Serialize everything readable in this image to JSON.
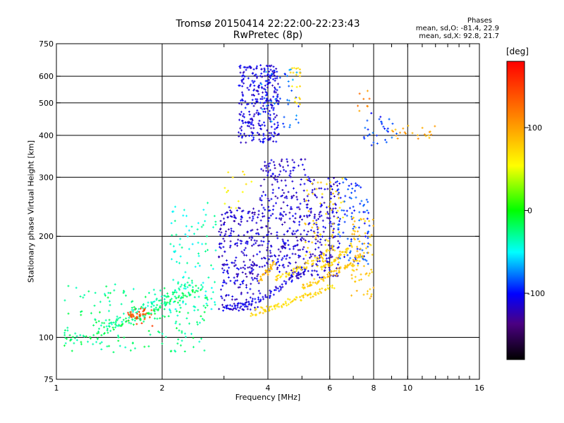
{
  "chart_data": {
    "type": "scatter",
    "title": "Tromsø 20150414 22:22:00-22:23:43",
    "subtitle": "RwPretec (8p)",
    "xlabel": "Frequency [MHz]",
    "ylabel": "Stationary phase Virtual Height [km]",
    "x_scale": "log",
    "y_scale": "log",
    "xlim": [
      1,
      16
    ],
    "ylim": [
      75,
      750
    ],
    "x_ticks": [
      1,
      2,
      4,
      6,
      8,
      10,
      16
    ],
    "x_tick_labels": [
      "1",
      "2",
      "4",
      "6",
      "8",
      "10",
      "16"
    ],
    "y_ticks": [
      75,
      100,
      200,
      300,
      400,
      500,
      600,
      750
    ],
    "y_tick_labels": [
      "75",
      "100",
      "200",
      "300",
      "400",
      "500",
      "600",
      "750"
    ],
    "grid": true,
    "phases": {
      "heading": "Phases",
      "o_line": "mean, sd,O: -81.4, 22.9",
      "x_line": "mean, sd,X:  92.8, 21.7"
    },
    "colorbar": {
      "label": "[deg]",
      "range": [
        -180,
        180
      ],
      "ticks": [
        100,
        0,
        -100
      ],
      "tick_labels": [
        "100",
        "0",
        "-100"
      ]
    },
    "traces": [
      {
        "x": [
          1.05,
          1.3,
          1.5,
          1.7,
          1.9,
          2.1,
          2.35,
          2.6
        ],
        "y": [
          98,
          102,
          108,
          113,
          120,
          128,
          134,
          140
        ],
        "phase": -20
      },
      {
        "x": [
          1.35,
          1.55,
          1.75,
          1.95,
          2.2,
          2.45
        ],
        "y": [
          108,
          115,
          122,
          128,
          138,
          148
        ],
        "phase": -30
      },
      {
        "x": [
          1.6,
          1.7,
          1.8
        ],
        "y": [
          118,
          115,
          120
        ],
        "phase": 140
      },
      {
        "x": [
          3.05,
          3.3,
          3.6,
          3.95,
          4.3,
          4.7,
          5.2
        ],
        "y": [
          122,
          124,
          126,
          132,
          140,
          150,
          160
        ],
        "phase": -110
      },
      {
        "x": [
          3.6,
          3.9,
          4.2,
          4.6,
          5.1,
          5.6,
          6.2
        ],
        "y": [
          118,
          121,
          124,
          128,
          132,
          137,
          142
        ],
        "phase": 70
      },
      {
        "x": [
          5.0,
          5.4,
          5.9,
          6.4,
          6.9,
          7.4
        ],
        "y": [
          140,
          146,
          152,
          158,
          165,
          174
        ],
        "phase": 80
      },
      {
        "x": [
          5.7,
          6.1,
          6.5,
          7.0
        ],
        "y": [
          160,
          168,
          178,
          190
        ],
        "phase": 75
      },
      {
        "x": [
          4.2,
          4.6,
          5.0,
          5.6,
          6.2
        ],
        "y": [
          150,
          155,
          162,
          172,
          185
        ],
        "phase": 70
      },
      {
        "x": [
          3.8,
          4.0,
          4.2
        ],
        "y": [
          150,
          158,
          168
        ],
        "phase": 90
      }
    ],
    "clusters": [
      {
        "x": [
          1.05,
          2.7
        ],
        "y": [
          90,
          145
        ],
        "phase": -25,
        "count": 190
      },
      {
        "x": [
          1.6,
          1.9
        ],
        "y": [
          108,
          122
        ],
        "phase": 135,
        "count": 18
      },
      {
        "x": [
          2.1,
          2.9
        ],
        "y": [
          120,
          260
        ],
        "phase": -40,
        "count": 90
      },
      {
        "x": [
          2.9,
          3.8
        ],
        "y": [
          120,
          245
        ],
        "phase": -115,
        "count": 260
      },
      {
        "x": [
          3.3,
          4.3
        ],
        "y": [
          380,
          650
        ],
        "phase": -110,
        "count": 300
      },
      {
        "x": [
          3.8,
          5.0
        ],
        "y": [
          420,
          640
        ],
        "phase": -80,
        "count": 45
      },
      {
        "x": [
          4.6,
          4.95
        ],
        "y": [
          480,
          640
        ],
        "phase": 70,
        "count": 20
      },
      {
        "x": [
          3.8,
          5.3
        ],
        "y": [
          150,
          340
        ],
        "phase": -115,
        "count": 320
      },
      {
        "x": [
          5.3,
          6.4
        ],
        "y": [
          150,
          300
        ],
        "phase": -115,
        "count": 160
      },
      {
        "x": [
          5.1,
          6.6
        ],
        "y": [
          160,
          300
        ],
        "phase": 75,
        "count": 70
      },
      {
        "x": [
          6.3,
          7.8
        ],
        "y": [
          165,
          300
        ],
        "phase": -90,
        "count": 100
      },
      {
        "x": [
          6.9,
          8.0
        ],
        "y": [
          130,
          230
        ],
        "phase": 80,
        "count": 70
      },
      {
        "x": [
          7.5,
          9.4
        ],
        "y": [
          370,
          470
        ],
        "phase": -90,
        "count": 30
      },
      {
        "x": [
          9.0,
          12.0
        ],
        "y": [
          390,
          430
        ],
        "phase": 95,
        "count": 22
      },
      {
        "x": [
          3.0,
          3.6
        ],
        "y": [
          240,
          320
        ],
        "phase": 60,
        "count": 14
      },
      {
        "x": [
          7.2,
          7.8
        ],
        "y": [
          440,
          600
        ],
        "phase": 110,
        "count": 8
      }
    ]
  }
}
